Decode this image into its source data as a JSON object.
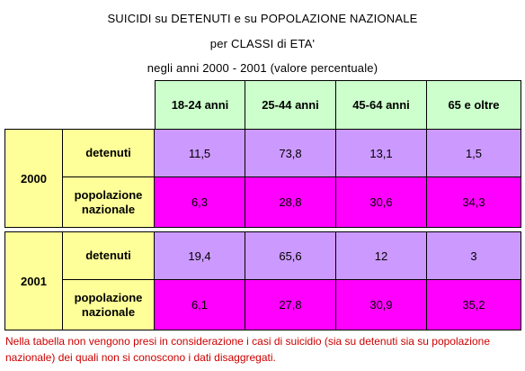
{
  "header": {
    "title_line1": "SUICIDI su DETENUTI e su POPOLAZIONE NAZIONALE",
    "title_line2": "per CLASSI di ETA'",
    "title_line3": "negli anni 2000 - 2001 (valore percentuale)"
  },
  "table": {
    "columns": [
      "18-24 anni",
      "25-44 anni",
      "45-64 anni",
      "65 e oltre"
    ],
    "years": [
      {
        "year": "2000",
        "rows": [
          {
            "label": "detenuti",
            "values": [
              "11,5",
              "73,8",
              "13,1",
              "1,5"
            ]
          },
          {
            "label": "popolazione nazionale",
            "values": [
              "6,3",
              "28,8",
              "30,6",
              "34,3"
            ]
          }
        ]
      },
      {
        "year": "2001",
        "rows": [
          {
            "label": "detenuti",
            "values": [
              "19,4",
              "65,6",
              "12",
              "3"
            ]
          },
          {
            "label": "popolazione nazionale",
            "values": [
              "6,1",
              "27,8",
              "30,9",
              "35,2"
            ]
          }
        ]
      }
    ]
  },
  "footnote": "Nella tabella non vengono presi in considerazione i casi di suicidio (sia su detenuti sia su popolazione nazionale) dei quali non si conoscono i dati disaggregati.",
  "colors": {
    "header_bg": "#ccffcc",
    "label_bg": "#ffff99",
    "detenuti_bg": "#cc99ff",
    "popolazione_bg": "#ff00ff",
    "footnote_text": "#cc0000"
  }
}
